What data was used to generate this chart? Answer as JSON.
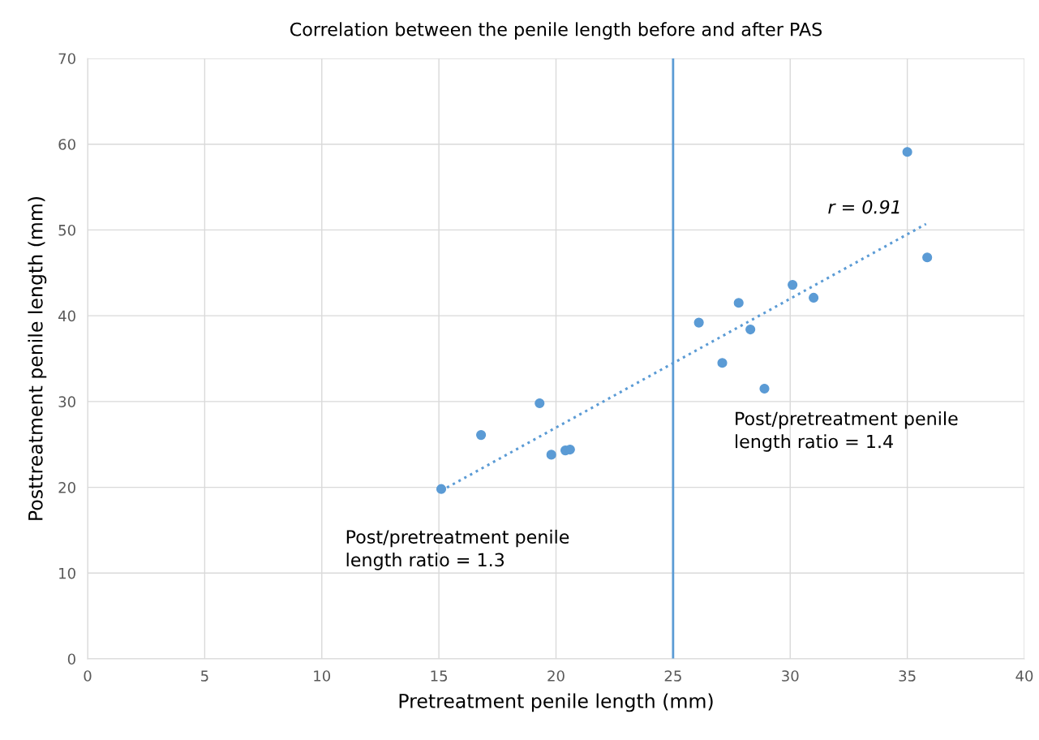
{
  "chart_data": {
    "type": "scatter",
    "title": "Correlation between the penile length before and after PAS",
    "xlabel": "Pretreatment penile length (mm)",
    "ylabel": "Posttreatment penile length (mm)",
    "series": [
      {
        "color": "#5b9bd5",
        "marker": "circle",
        "x": [
          35.0,
          35.85,
          30.1,
          31.0,
          27.8,
          26.1,
          28.3,
          27.1,
          28.9,
          19.3,
          16.8,
          19.8,
          20.4,
          20.6,
          15.1
        ],
        "values": [
          59.1,
          46.8,
          43.6,
          42.1,
          41.5,
          39.2,
          38.4,
          34.5,
          31.5,
          29.8,
          26.1,
          23.8,
          24.3,
          24.4,
          19.8
        ]
      },
      {
        "type": "line",
        "color": "#5b9bd5",
        "line_style": "dotted",
        "marker": "none",
        "x": [
          15.1,
          35.8
        ],
        "values": [
          19.6,
          50.7
        ]
      }
    ],
    "ref_lines": [
      {
        "axis": "x",
        "value": 25,
        "color": "#5b9bd5",
        "line_style": "solid"
      }
    ],
    "annotations": [
      "r = 0.91",
      "Post/pretreatment penile\nlength ratio = 1.4",
      "Post/pretreatment penile\nlength ratio = 1.3"
    ],
    "xlim": [
      0,
      40
    ],
    "xticks": [
      0,
      5,
      10,
      15,
      20,
      25,
      30,
      35,
      40
    ],
    "ylim": [
      0,
      70
    ],
    "yticks": [
      0,
      10,
      20,
      30,
      40,
      50,
      60,
      70
    ],
    "grid": true,
    "legend": false
  }
}
